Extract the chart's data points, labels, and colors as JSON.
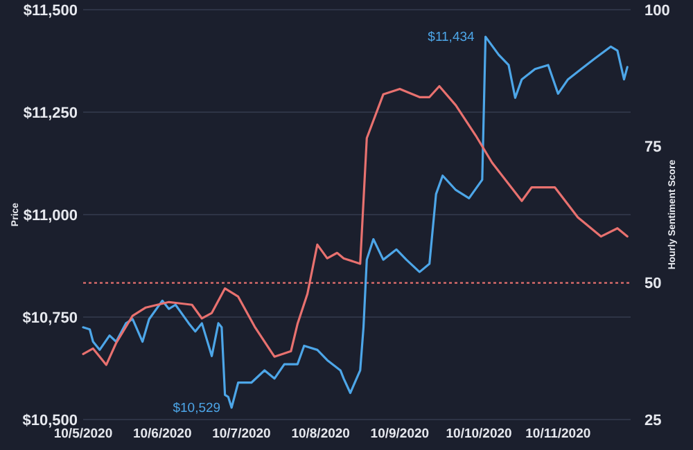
{
  "chart_data": {
    "type": "line",
    "xlabel": null,
    "ylabel": "Price",
    "y2label": "Hourly Sentiment Score",
    "xlim": [
      "2020-10-05T00:00",
      "2020-10-11T22:00"
    ],
    "xticks": [
      {
        "value": "2020-10-05",
        "label": "10/5/2020"
      },
      {
        "value": "2020-10-06",
        "label": "10/6/2020"
      },
      {
        "value": "2020-10-07",
        "label": "10/7/2020"
      },
      {
        "value": "2020-10-08",
        "label": "10/8/2020"
      },
      {
        "value": "2020-10-09",
        "label": "10/9/2020"
      },
      {
        "value": "2020-10-10",
        "label": "10/10/2020"
      },
      {
        "value": "2020-10-11",
        "label": "10/11/2020"
      }
    ],
    "ylim": [
      10500,
      11500
    ],
    "yticks": [
      {
        "value": 10500,
        "label": "$10,500"
      },
      {
        "value": 10750,
        "label": "$10,750"
      },
      {
        "value": 11000,
        "label": "$11,000"
      },
      {
        "value": 11250,
        "label": "$11,250"
      },
      {
        "value": 11500,
        "label": "$11,500"
      }
    ],
    "y2lim": [
      25,
      100
    ],
    "y2ticks": [
      25,
      50,
      75,
      100
    ],
    "grid": "y",
    "series": [
      {
        "color": "#4da6e8",
        "x": [
          "2020-10-05T00:00",
          "2020-10-05T02:00",
          "2020-10-05T03:00",
          "2020-10-05T05:00",
          "2020-10-05T08:00",
          "2020-10-05T10:00",
          "2020-10-05T13:00",
          "2020-10-05T15:00",
          "2020-10-05T18:00",
          "2020-10-05T20:00",
          "2020-10-06T00:00",
          "2020-10-06T02:00",
          "2020-10-06T04:00",
          "2020-10-06T08:00",
          "2020-10-06T10:00",
          "2020-10-06T12:00",
          "2020-10-06T15:00",
          "2020-10-06T17:00",
          "2020-10-06T18:00",
          "2020-10-06T19:00",
          "2020-10-06T20:00",
          "2020-10-06T21:00",
          "2020-10-06T23:00",
          "2020-10-07T03:00",
          "2020-10-07T07:00",
          "2020-10-07T10:00",
          "2020-10-07T13:00",
          "2020-10-07T17:00",
          "2020-10-07T19:00",
          "2020-10-07T23:00",
          "2020-10-08T02:00",
          "2020-10-08T06:00",
          "2020-10-08T07:00",
          "2020-10-08T09:00",
          "2020-10-08T12:00",
          "2020-10-08T13:00",
          "2020-10-08T14:00",
          "2020-10-08T16:00",
          "2020-10-08T19:00",
          "2020-10-08T23:00",
          "2020-10-09T02:00",
          "2020-10-09T06:00",
          "2020-10-09T09:00",
          "2020-10-09T11:00",
          "2020-10-09T13:00",
          "2020-10-09T17:00",
          "2020-10-09T21:00",
          "2020-10-10T01:00",
          "2020-10-10T02:00",
          "2020-10-10T06:00",
          "2020-10-10T09:00",
          "2020-10-10T11:00",
          "2020-10-10T13:00",
          "2020-10-10T17:00",
          "2020-10-10T21:00",
          "2020-10-11T00:00",
          "2020-10-11T03:00",
          "2020-10-11T07:00",
          "2020-10-11T11:00",
          "2020-10-11T16:00",
          "2020-10-11T18:00",
          "2020-10-11T20:00",
          "2020-10-11T21:00"
        ],
        "values": [
          10725,
          10720,
          10690,
          10670,
          10705,
          10690,
          10735,
          10745,
          10690,
          10745,
          10790,
          10770,
          10780,
          10735,
          10715,
          10735,
          10655,
          10735,
          10725,
          10560,
          10555,
          10529,
          10590,
          10590,
          10620,
          10600,
          10635,
          10635,
          10680,
          10670,
          10645,
          10620,
          10600,
          10565,
          10620,
          10725,
          10890,
          10940,
          10890,
          10915,
          10890,
          10860,
          10880,
          11050,
          11095,
          11060,
          11040,
          11085,
          11434,
          11390,
          11365,
          11285,
          11330,
          11355,
          11365,
          11295,
          11330,
          11355,
          11380,
          11410,
          11400,
          11330,
          11360
        ]
      },
      {
        "color": "#e8716f",
        "axis": "y2",
        "x": [
          "2020-10-05T00:00",
          "2020-10-05T03:00",
          "2020-10-05T07:00",
          "2020-10-05T10:00",
          "2020-10-05T15:00",
          "2020-10-05T19:00",
          "2020-10-06T02:00",
          "2020-10-06T09:00",
          "2020-10-06T12:00",
          "2020-10-06T15:00",
          "2020-10-06T19:00",
          "2020-10-06T23:00",
          "2020-10-07T04:00",
          "2020-10-07T10:00",
          "2020-10-07T15:00",
          "2020-10-07T17:00",
          "2020-10-07T20:00",
          "2020-10-07T23:00",
          "2020-10-08T02:00",
          "2020-10-08T05:00",
          "2020-10-08T07:00",
          "2020-10-08T12:00",
          "2020-10-08T14:00",
          "2020-10-08T19:00",
          "2020-10-09T00:00",
          "2020-10-09T06:00",
          "2020-10-09T09:00",
          "2020-10-09T12:00",
          "2020-10-09T17:00",
          "2020-10-09T23:00",
          "2020-10-10T04:00",
          "2020-10-10T13:00",
          "2020-10-10T16:00",
          "2020-10-10T23:00",
          "2020-10-11T06:00",
          "2020-10-11T13:00",
          "2020-10-11T18:00",
          "2020-10-11T21:00"
        ],
        "values": [
          37,
          38,
          35,
          39,
          44,
          45.5,
          46.5,
          46,
          43.5,
          44.5,
          49,
          47.5,
          42,
          36.5,
          37.5,
          42.5,
          48,
          57,
          54.5,
          55.5,
          54.5,
          53.5,
          76.5,
          84.5,
          85.5,
          84,
          84,
          86,
          82.5,
          77,
          72,
          65,
          67.5,
          67.5,
          62,
          58.5,
          60,
          58.5
        ]
      }
    ],
    "ref_lines": [
      {
        "axis": "y2",
        "value": 50,
        "color": "#e8716f",
        "line_style": "dotted"
      }
    ],
    "annotations": [
      {
        "text": "$11,434",
        "x": "2020-10-10T02:00",
        "y": 11434
      },
      {
        "text": "$10,529",
        "x": "2020-10-06T21:00",
        "y": 10529
      }
    ]
  }
}
